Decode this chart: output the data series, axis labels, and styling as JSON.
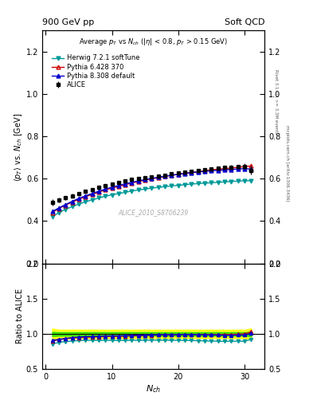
{
  "title_left": "900 GeV pp",
  "title_right": "Soft QCD",
  "subtitle": "Average p_{T} vs N_{ch} (|#eta| < 0.8, p_{T} > 0.15 GeV)",
  "ylabel_main": "<p_{T}> vs. N_{ch} [GeV]",
  "ylabel_ratio": "Ratio to ALICE",
  "xlabel": "N_{ch}",
  "watermark": "ALICE_2010_S8706239",
  "right_label_top": "Rivet 3.1.10, >= 3.3M events",
  "right_label_bottom": "mcplots.cern.ch [arXiv:1306.3436]",
  "nch": [
    1,
    2,
    3,
    4,
    5,
    6,
    7,
    8,
    9,
    10,
    11,
    12,
    13,
    14,
    15,
    16,
    17,
    18,
    19,
    20,
    21,
    22,
    23,
    24,
    25,
    26,
    27,
    28,
    29,
    30,
    31
  ],
  "alice_y": [
    0.49,
    0.5,
    0.51,
    0.52,
    0.53,
    0.54,
    0.55,
    0.56,
    0.568,
    0.576,
    0.584,
    0.59,
    0.596,
    0.601,
    0.606,
    0.61,
    0.614,
    0.618,
    0.622,
    0.626,
    0.63,
    0.634,
    0.638,
    0.642,
    0.646,
    0.65,
    0.654,
    0.655,
    0.656,
    0.658,
    0.64
  ],
  "alice_yerr": [
    0.015,
    0.012,
    0.01,
    0.009,
    0.008,
    0.007,
    0.007,
    0.006,
    0.006,
    0.006,
    0.005,
    0.005,
    0.005,
    0.005,
    0.005,
    0.005,
    0.005,
    0.005,
    0.005,
    0.005,
    0.006,
    0.006,
    0.006,
    0.007,
    0.007,
    0.008,
    0.009,
    0.01,
    0.011,
    0.013,
    0.02
  ],
  "herwig_y": [
    0.42,
    0.44,
    0.455,
    0.468,
    0.48,
    0.491,
    0.5,
    0.509,
    0.517,
    0.524,
    0.53,
    0.536,
    0.542,
    0.547,
    0.551,
    0.556,
    0.559,
    0.563,
    0.566,
    0.569,
    0.572,
    0.575,
    0.577,
    0.579,
    0.581,
    0.583,
    0.585,
    0.587,
    0.589,
    0.59,
    0.591
  ],
  "pythia6_y": [
    0.44,
    0.46,
    0.475,
    0.49,
    0.503,
    0.515,
    0.526,
    0.537,
    0.547,
    0.556,
    0.564,
    0.572,
    0.58,
    0.587,
    0.593,
    0.6,
    0.605,
    0.611,
    0.616,
    0.621,
    0.626,
    0.63,
    0.634,
    0.638,
    0.642,
    0.645,
    0.648,
    0.651,
    0.654,
    0.658,
    0.66
  ],
  "pythia8_y": [
    0.445,
    0.462,
    0.478,
    0.493,
    0.507,
    0.519,
    0.53,
    0.541,
    0.551,
    0.56,
    0.568,
    0.576,
    0.583,
    0.59,
    0.596,
    0.602,
    0.607,
    0.612,
    0.617,
    0.621,
    0.625,
    0.629,
    0.632,
    0.635,
    0.638,
    0.64,
    0.642,
    0.644,
    0.646,
    0.648,
    0.645
  ],
  "alice_color": "#000000",
  "herwig_color": "#009999",
  "pythia6_color": "#cc0000",
  "pythia8_color": "#0000cc",
  "ylim_main": [
    0.2,
    1.3
  ],
  "ylim_ratio": [
    0.5,
    2.0
  ],
  "xlim": [
    -0.5,
    33
  ],
  "yticks_main": [
    0.2,
    0.4,
    0.6,
    0.8,
    1.0,
    1.2
  ],
  "yticks_ratio": [
    0.5,
    1.0,
    1.5,
    2.0
  ],
  "xticks": [
    0,
    10,
    20,
    30
  ],
  "band_yellow_half": 0.06,
  "band_green_half": 0.025
}
